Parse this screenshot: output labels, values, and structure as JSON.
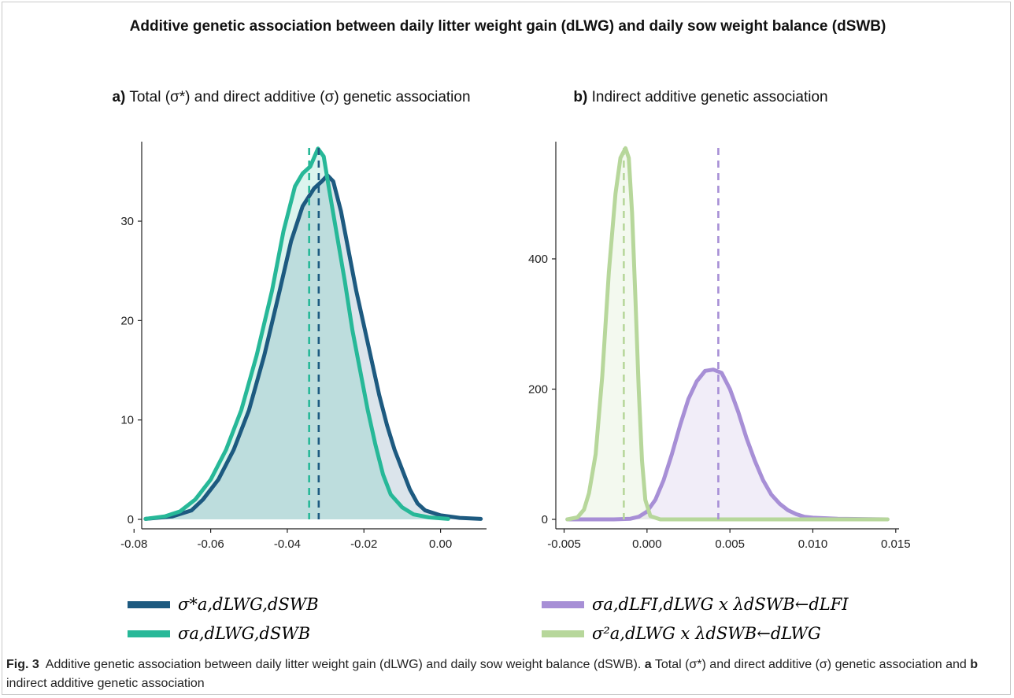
{
  "figure": {
    "title": "Additive genetic association between daily litter weight gain (dLWG) and daily sow weight balance (dSWB)",
    "panel_a_label": "a)",
    "panel_a_title": "Total (σ*) and direct additive (σ) genetic association",
    "panel_b_label": "b)",
    "panel_b_title": "Indirect additive genetic association",
    "caption_label": "Fig. 3",
    "caption_text": "Additive genetic association between daily litter weight gain (dLWG) and daily sow weight balance (dSWB).",
    "caption_a": "a",
    "caption_a_text": "Total (σ*) and direct additive (σ) genetic association and",
    "caption_b": "b",
    "caption_b_text": "indirect additive genetic association"
  },
  "colors": {
    "dark_blue": "#1d5a80",
    "teal": "#27b898",
    "purple": "#a78fd6",
    "light_green": "#b7d79b"
  },
  "chart_data": [
    {
      "type": "area",
      "panel": "a",
      "x_ticks": [
        "-0.08",
        "-0.06",
        "-0.04",
        "-0.02",
        "0.00"
      ],
      "y_ticks": [
        "0",
        "10",
        "20",
        "30"
      ],
      "xlim": [
        -0.078,
        0.012
      ],
      "ylim": [
        0,
        38
      ],
      "grid": false,
      "legend_position": "bottom",
      "series": [
        {
          "name": "σ*a,dLWG,dSWB",
          "color": "#1d5a80",
          "mean_line": -0.0318,
          "points": [
            [
              -0.077,
              0.05
            ],
            [
              -0.07,
              0.3
            ],
            [
              -0.065,
              0.9
            ],
            [
              -0.062,
              2.0
            ],
            [
              -0.058,
              4.0
            ],
            [
              -0.054,
              7.0
            ],
            [
              -0.05,
              11.0
            ],
            [
              -0.046,
              16.5
            ],
            [
              -0.042,
              23.0
            ],
            [
              -0.039,
              28.0
            ],
            [
              -0.036,
              31.5
            ],
            [
              -0.033,
              33.3
            ],
            [
              -0.031,
              34.0
            ],
            [
              -0.0295,
              34.6
            ],
            [
              -0.028,
              34.0
            ],
            [
              -0.026,
              31.0
            ],
            [
              -0.024,
              27.0
            ],
            [
              -0.022,
              23.0
            ],
            [
              -0.02,
              19.5
            ],
            [
              -0.018,
              16.0
            ],
            [
              -0.016,
              12.5
            ],
            [
              -0.014,
              9.5
            ],
            [
              -0.012,
              7.0
            ],
            [
              -0.01,
              5.0
            ],
            [
              -0.008,
              3.0
            ],
            [
              -0.006,
              1.6
            ],
            [
              -0.004,
              0.9
            ],
            [
              0.0,
              0.4
            ],
            [
              0.005,
              0.15
            ],
            [
              0.0105,
              0.05
            ]
          ]
        },
        {
          "name": "σa,dLWG,dSWB",
          "color": "#27b898",
          "mean_line": -0.0343,
          "points": [
            [
              -0.077,
              0.05
            ],
            [
              -0.072,
              0.3
            ],
            [
              -0.068,
              0.8
            ],
            [
              -0.064,
              2.0
            ],
            [
              -0.06,
              4.0
            ],
            [
              -0.056,
              7.0
            ],
            [
              -0.052,
              11.0
            ],
            [
              -0.048,
              16.5
            ],
            [
              -0.044,
              23.0
            ],
            [
              -0.041,
              29.0
            ],
            [
              -0.038,
              33.5
            ],
            [
              -0.036,
              34.8
            ],
            [
              -0.034,
              35.5
            ],
            [
              -0.032,
              37.3
            ],
            [
              -0.0305,
              36.5
            ],
            [
              -0.029,
              33.0
            ],
            [
              -0.027,
              28.5
            ],
            [
              -0.025,
              24.0
            ],
            [
              -0.023,
              19.0
            ],
            [
              -0.021,
              15.0
            ],
            [
              -0.019,
              11.0
            ],
            [
              -0.017,
              7.5
            ],
            [
              -0.015,
              4.5
            ],
            [
              -0.013,
              2.5
            ],
            [
              -0.01,
              1.2
            ],
            [
              -0.007,
              0.5
            ],
            [
              -0.003,
              0.2
            ],
            [
              0.002,
              0.05
            ]
          ]
        }
      ]
    },
    {
      "type": "area",
      "panel": "b",
      "x_ticks": [
        "-0.005",
        "0.000",
        "0.005",
        "0.010",
        "0.015"
      ],
      "y_ticks": [
        "0",
        "200",
        "400"
      ],
      "xlim": [
        -0.0055,
        0.0152
      ],
      "ylim": [
        0,
        580
      ],
      "grid": false,
      "legend_position": "bottom",
      "series": [
        {
          "name": "σa,dLFI,dLWG x λdSWB←dLFI",
          "color": "#a78fd6",
          "mean_line": 0.0043,
          "points": [
            [
              -0.0048,
              0
            ],
            [
              -0.002,
              0
            ],
            [
              -0.001,
              1
            ],
            [
              -0.0005,
              4
            ],
            [
              0.0,
              12
            ],
            [
              0.0005,
              30
            ],
            [
              0.001,
              60
            ],
            [
              0.0015,
              100
            ],
            [
              0.002,
              145
            ],
            [
              0.0025,
              185
            ],
            [
              0.003,
              212
            ],
            [
              0.0035,
              228
            ],
            [
              0.004,
              230
            ],
            [
              0.0045,
              225
            ],
            [
              0.005,
              200
            ],
            [
              0.0055,
              165
            ],
            [
              0.006,
              125
            ],
            [
              0.0065,
              90
            ],
            [
              0.007,
              60
            ],
            [
              0.0075,
              38
            ],
            [
              0.008,
              24
            ],
            [
              0.0085,
              14
            ],
            [
              0.009,
              8
            ],
            [
              0.0095,
              4
            ],
            [
              0.01,
              2.5
            ],
            [
              0.0115,
              1
            ],
            [
              0.0145,
              0
            ]
          ]
        },
        {
          "name": "σ²a,dLWG x λdSWB←dLWG",
          "color": "#b7d79b",
          "mean_line": -0.0014,
          "points": [
            [
              -0.0048,
              0
            ],
            [
              -0.0042,
              3
            ],
            [
              -0.0038,
              15
            ],
            [
              -0.0035,
              40
            ],
            [
              -0.0031,
              100
            ],
            [
              -0.0027,
              220
            ],
            [
              -0.0023,
              380
            ],
            [
              -0.0019,
              500
            ],
            [
              -0.0016,
              555
            ],
            [
              -0.0013,
              570
            ],
            [
              -0.0011,
              555
            ],
            [
              -0.0009,
              470
            ],
            [
              -0.0007,
              340
            ],
            [
              -0.0005,
              200
            ],
            [
              -0.0003,
              90
            ],
            [
              -0.0001,
              30
            ],
            [
              0.0002,
              5
            ],
            [
              0.0008,
              0
            ],
            [
              0.0145,
              0
            ]
          ]
        }
      ]
    }
  ]
}
